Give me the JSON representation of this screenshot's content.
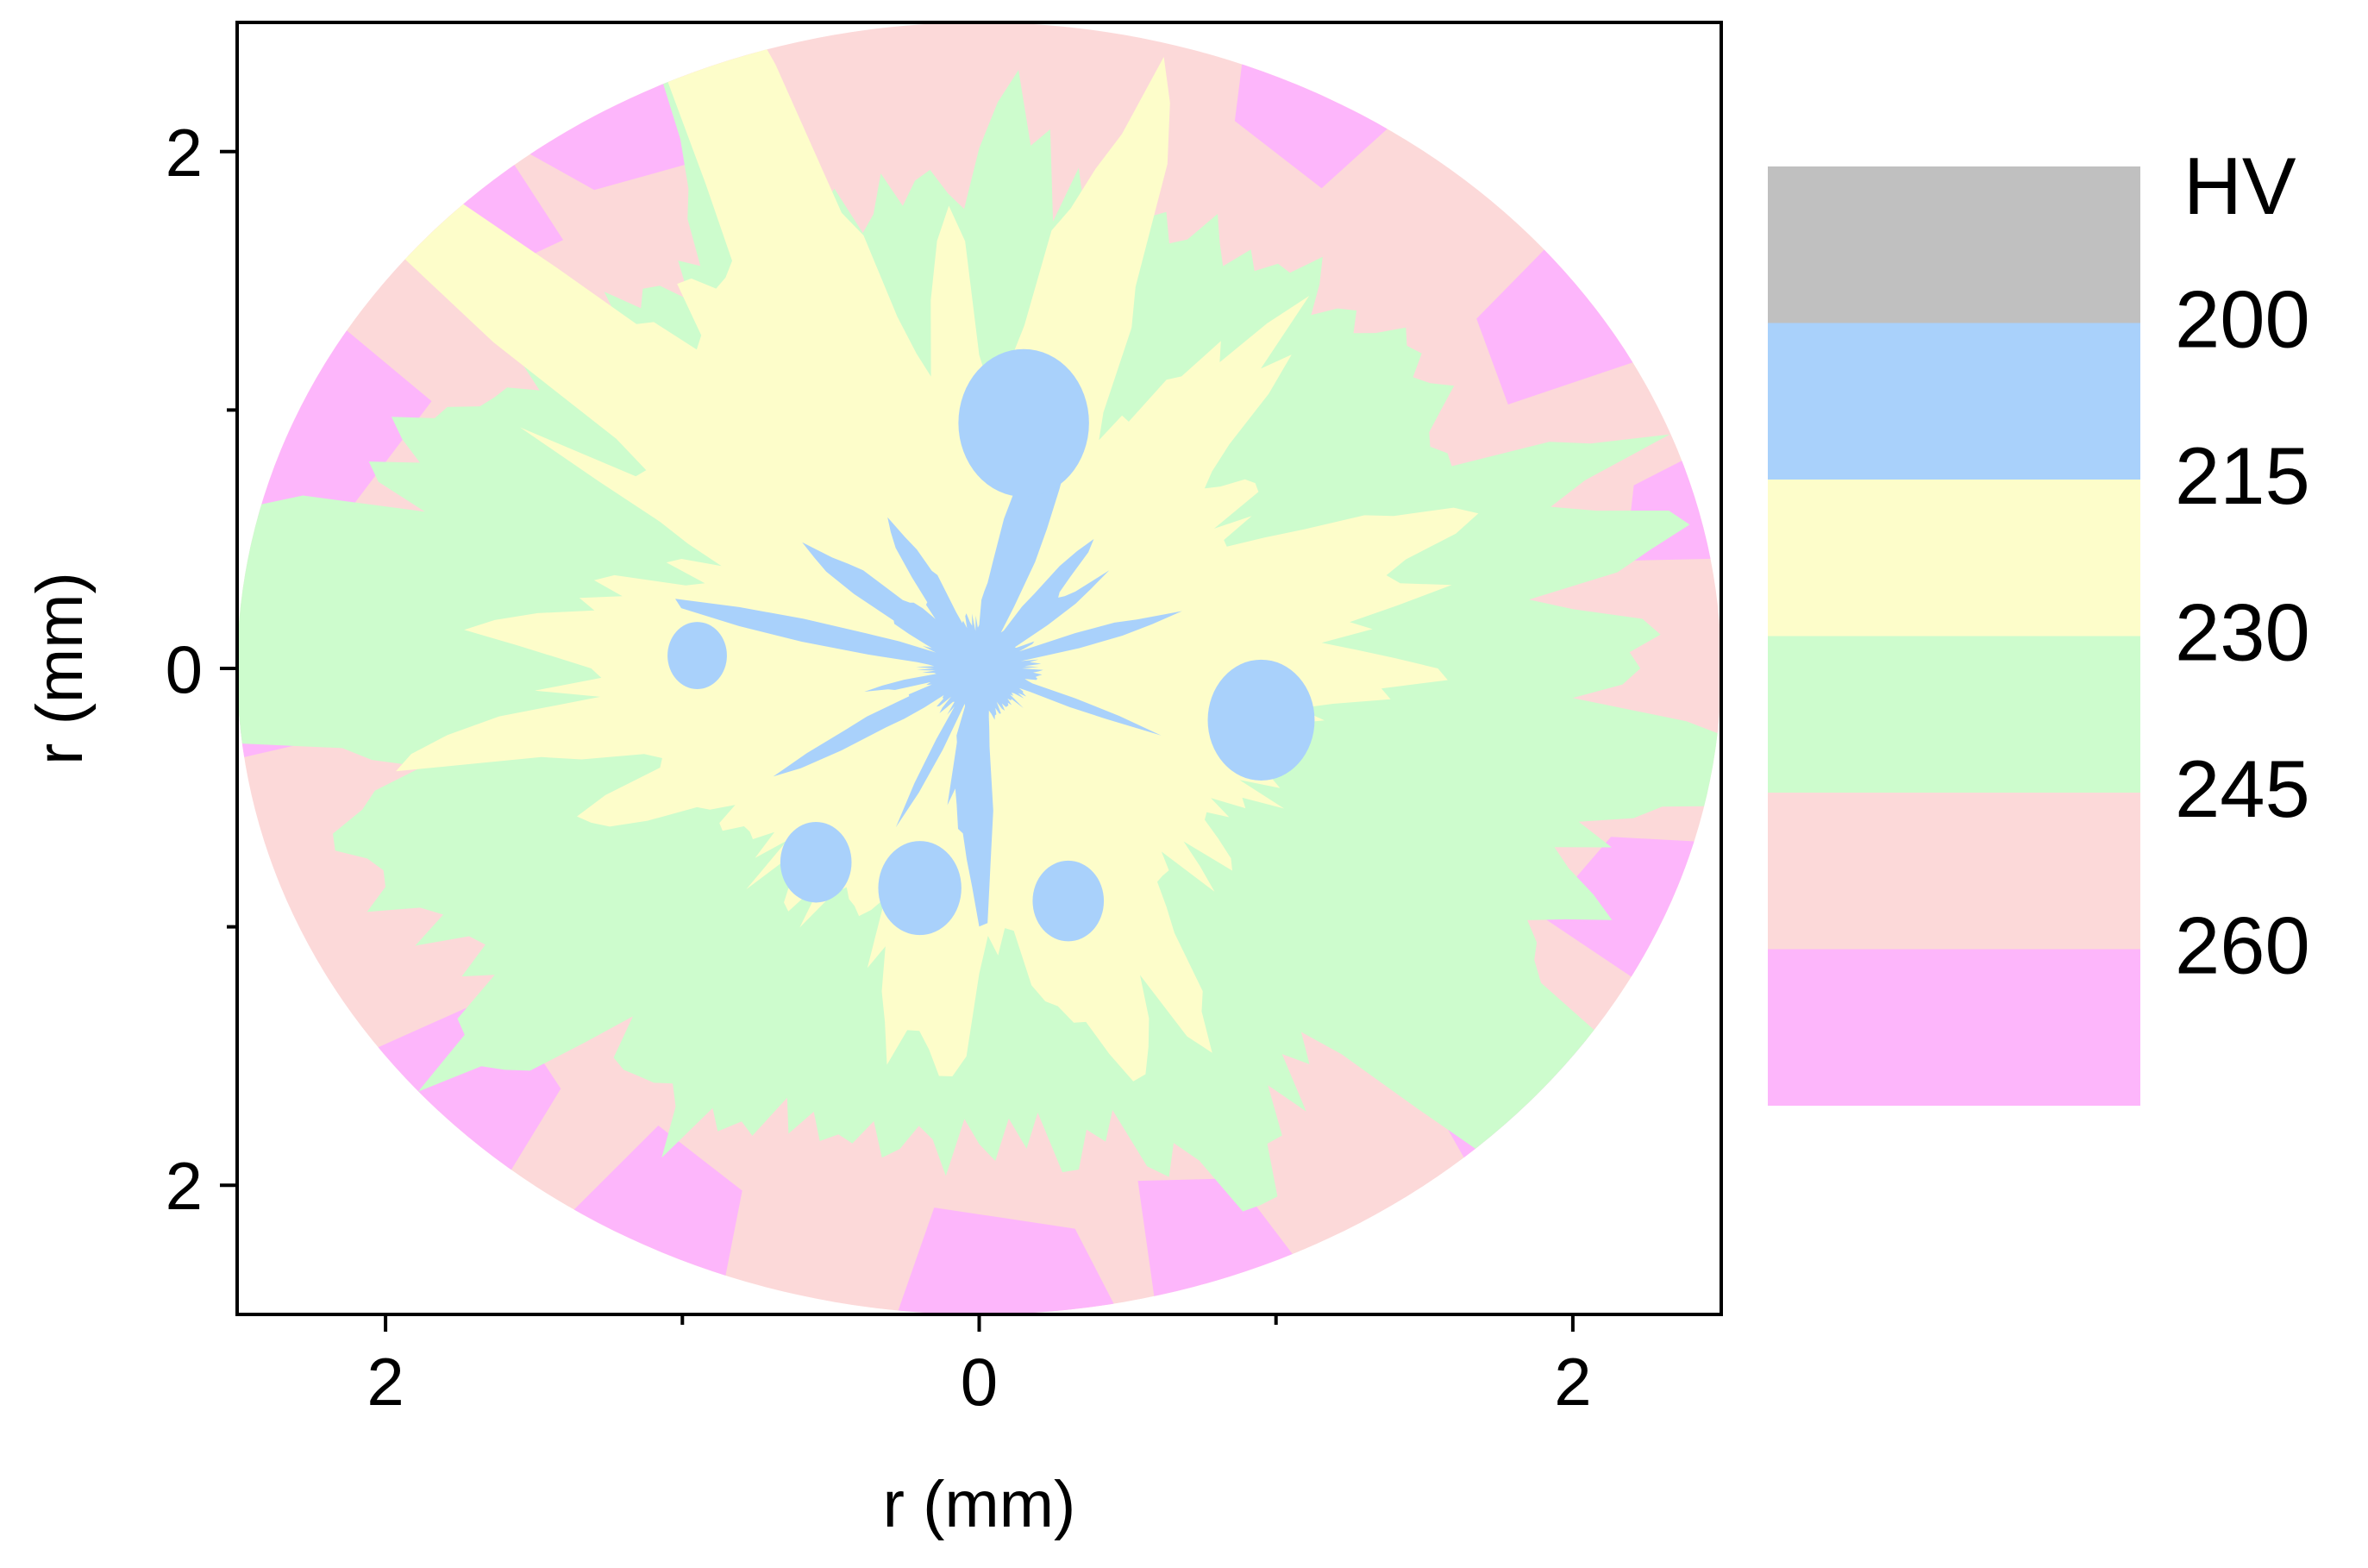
{
  "chart_data": {
    "type": "heatmap",
    "subtype": "filled-contour map on circular cross-section",
    "title": "",
    "xlabel": "r (mm)",
    "ylabel": "r (mm)",
    "xlim": [
      -2.5,
      2.5
    ],
    "ylim": [
      -2.5,
      2.5
    ],
    "x_ticks": [
      {
        "value": -2,
        "label": "2"
      },
      {
        "value": 0,
        "label": "0"
      },
      {
        "value": 2,
        "label": "2"
      }
    ],
    "x_minor_ticks": [
      -1,
      1
    ],
    "y_ticks": [
      {
        "value": 2,
        "label": "2"
      },
      {
        "value": 0,
        "label": "0"
      },
      {
        "value": -2,
        "label": "2"
      }
    ],
    "y_minor_ticks": [
      1,
      -1
    ],
    "grid": false,
    "specimen_radius_mm": 2.5,
    "colorbar": {
      "title": "HV",
      "position": "right",
      "boundaries": [
        "200",
        "215",
        "230",
        "245",
        "260"
      ],
      "bands": [
        {
          "range": "< 200",
          "color": "#c0c0c0"
        },
        {
          "range": "200-215",
          "color": "#a9d1fb"
        },
        {
          "range": "215-230",
          "color": "#fdfdca"
        },
        {
          "range": "230-245",
          "color": "#cdfccd"
        },
        {
          "range": "245-260",
          "color": "#fcd9d9"
        },
        {
          "range": "> 260",
          "color": "#fdb6fb"
        }
      ]
    },
    "distribution": [
      {
        "region": "center (r < 0.3)",
        "hardness": "200-215"
      },
      {
        "region": "inner ring (0.3-1.2)",
        "hardness": "215-230"
      },
      {
        "region": "middle ring (1.2-1.9)",
        "hardness": "230-245"
      },
      {
        "region": "outer rim (1.9-2.5)",
        "hardness": "245-260"
      },
      {
        "region": "isolated rim patches",
        "hardness": "> 260"
      }
    ]
  }
}
